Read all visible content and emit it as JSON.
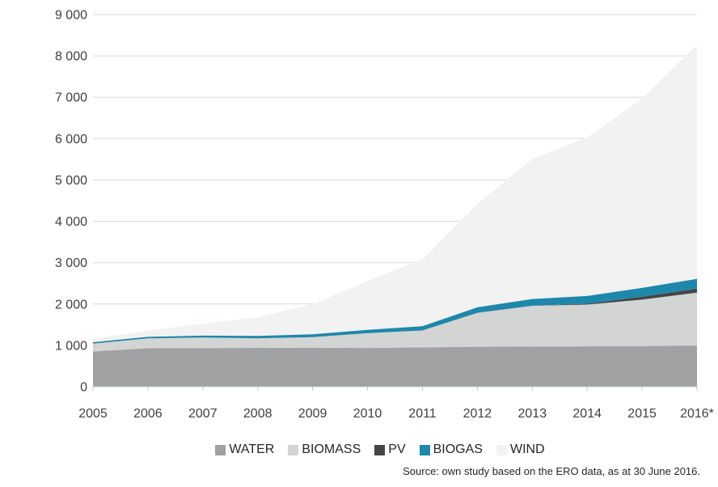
{
  "chart_data": {
    "type": "area",
    "stacked": true,
    "title": "",
    "xlabel": "",
    "ylabel": "",
    "grid": "horizontal",
    "legend_position": "bottom",
    "categories": [
      "2005",
      "2006",
      "2007",
      "2008",
      "2009",
      "2010",
      "2011",
      "2012",
      "2013",
      "2014",
      "2015",
      "2016*"
    ],
    "series": [
      {
        "name": "WATER",
        "color": "#a0a1a2",
        "values": [
          852,
          931,
          934,
          940,
          945,
          937,
          951,
          966,
          971,
          977,
          982,
          994
        ]
      },
      {
        "name": "BIOMASS",
        "color": "#d3d4d4",
        "values": [
          190,
          238,
          255,
          232,
          252,
          356,
          409,
          821,
          986,
          1008,
          1123,
          1281
        ]
      },
      {
        "name": "PV",
        "color": "#454545",
        "values": [
          0,
          0,
          0,
          0,
          0,
          0,
          1,
          1,
          2,
          21,
          71,
          99
        ]
      },
      {
        "name": "BIOGAS",
        "color": "#1e87ab",
        "values": [
          32,
          36,
          45,
          54,
          71,
          82,
          103,
          131,
          162,
          188,
          212,
          234
        ],
        "outlined": true
      },
      {
        "name": "WIND",
        "color": "#f2f2f2",
        "values": [
          83,
          152,
          288,
          451,
          725,
          1180,
          1616,
          2497,
          3389,
          3834,
          4582,
          5660
        ]
      }
    ],
    "ylim": [
      0,
      9000
    ],
    "ytick_step": 1000,
    "ytick_labels": [
      "0",
      "1 000",
      "2 000",
      "3 000",
      "4 000",
      "5 000",
      "6 000",
      "7 000",
      "8 000",
      "9 000"
    ]
  },
  "source_note": "Source: own study based on the ERO data, as at 30 June 2016.",
  "colors": {
    "gridline": "#d6d7d7",
    "axis": "#c6c7c8",
    "axis_text": "#404040"
  }
}
